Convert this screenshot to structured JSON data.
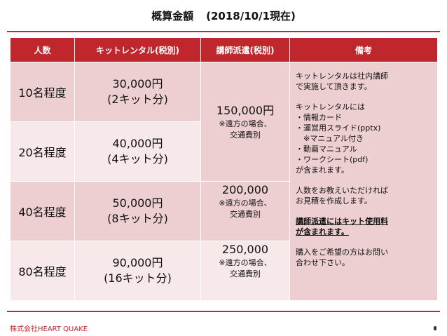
{
  "title": {
    "main": "概算金額",
    "date": "(2018/10/1現在)"
  },
  "headers": [
    "人数",
    "キットレンタル(税別)",
    "講師派遣(税別)",
    "備考"
  ],
  "rows": [
    {
      "people": "10名程度",
      "rental_amount": "30,000円",
      "rental_kits": "(2キット分)"
    },
    {
      "people": "20名程度",
      "rental_amount": "40,000円",
      "rental_kits": "(4キット分)"
    },
    {
      "people": "40名程度",
      "rental_amount": "50,000円",
      "rental_kits": "(8キット分)"
    },
    {
      "people": "80名程度",
      "rental_amount": "90,000円",
      "rental_kits": "(16キット分)"
    }
  ],
  "dispatch": [
    {
      "amount": "150,000円",
      "note1": "※遠方の場合、",
      "note2": "交通費別"
    },
    {
      "amount": "200,000",
      "note1": "※遠方の場合、",
      "note2": "交通費別"
    },
    {
      "amount": "250,000",
      "note1": "※遠方の場合、",
      "note2": "交通費別"
    }
  ],
  "remarks": {
    "p1": [
      "キットレンタルは社内講師",
      "で実施して頂きます。"
    ],
    "p2": [
      "キットレンタルには",
      "・情報カード",
      "・運営用スライド(pptx)",
      "　※マニュアル付き",
      "・動画マニュアル",
      "・ワークシート(pdf)",
      "が含まれます。"
    ],
    "p3": [
      "人数をお教えいただければ",
      "お見積を作成します。"
    ],
    "p4": [
      "講師派遣にはキット使用料",
      "が含まれます。"
    ],
    "p5": [
      "購入をご希望の方はお問い",
      "合わせ下さい。"
    ]
  },
  "footer": "株式会社HEART QUAKE",
  "colors": {
    "accent": "#c0272d",
    "row_dark": "#edcfd2",
    "row_light": "#f7e8e9"
  }
}
